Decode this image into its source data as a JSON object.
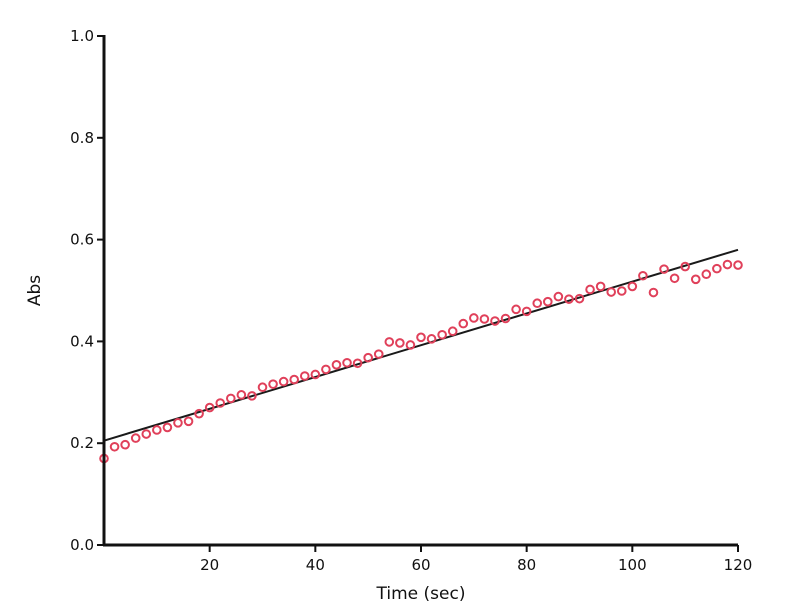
{
  "chart_data": {
    "type": "scatter",
    "xlabel": "Time (sec)",
    "ylabel": "Abs",
    "xlim": [
      0,
      120
    ],
    "ylim": [
      0.0,
      1.0
    ],
    "xticks": [
      20,
      40,
      60,
      80,
      100,
      120
    ],
    "xtick_labels": [
      "20",
      "40",
      "60",
      "80",
      "100",
      "120"
    ],
    "yticks": [
      0.0,
      0.2,
      0.4,
      0.6,
      0.8,
      1.0
    ],
    "ytick_labels": [
      "0.0",
      "0.2",
      "0.4",
      "0.6",
      "0.8",
      "1.0"
    ],
    "grid": false,
    "series": [
      {
        "type": "scatter",
        "marker": "open-circle",
        "color": "#e0405a",
        "x": [
          0,
          2,
          4,
          6,
          8,
          10,
          12,
          14,
          16,
          18,
          20,
          22,
          24,
          26,
          28,
          30,
          32,
          34,
          36,
          38,
          40,
          42,
          44,
          46,
          48,
          50,
          52,
          54,
          56,
          58,
          60,
          62,
          64,
          66,
          68,
          70,
          72,
          74,
          76,
          78,
          80,
          82,
          84,
          86,
          88,
          90,
          92,
          94,
          96,
          98,
          100,
          102,
          104,
          106,
          108,
          110,
          112,
          114,
          116,
          118,
          120
        ],
        "y": [
          0.17,
          0.193,
          0.197,
          0.21,
          0.218,
          0.226,
          0.231,
          0.24,
          0.243,
          0.258,
          0.27,
          0.279,
          0.288,
          0.295,
          0.293,
          0.31,
          0.316,
          0.321,
          0.325,
          0.332,
          0.335,
          0.345,
          0.354,
          0.358,
          0.357,
          0.368,
          0.375,
          0.399,
          0.397,
          0.393,
          0.408,
          0.405,
          0.413,
          0.42,
          0.435,
          0.446,
          0.444,
          0.44,
          0.445,
          0.463,
          0.459,
          0.475,
          0.478,
          0.488,
          0.483,
          0.484,
          0.502,
          0.508,
          0.497,
          0.499,
          0.508,
          0.529,
          0.496,
          0.542,
          0.524,
          0.547,
          0.522,
          0.532,
          0.543,
          0.551,
          0.55
        ]
      },
      {
        "type": "line",
        "color": "#1a1a1a",
        "x": [
          0,
          120
        ],
        "y": [
          0.205,
          0.58
        ]
      }
    ]
  }
}
